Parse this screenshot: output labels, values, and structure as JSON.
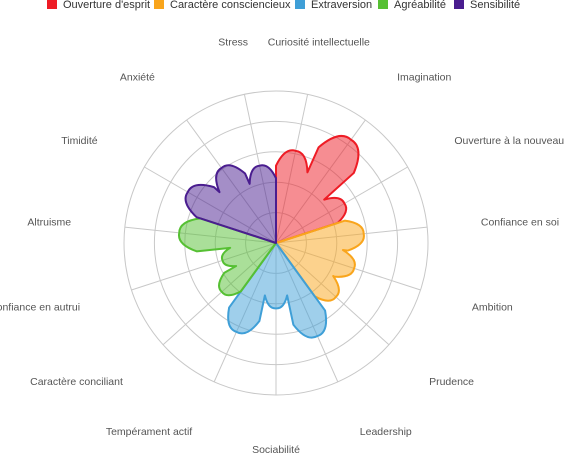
{
  "chart_data": {
    "type": "radar",
    "style": "polar-area",
    "title": "",
    "rmax": 100,
    "rings": 5,
    "grid": true,
    "legend_position": "top",
    "axes": [
      "Curiosité intellectuelle",
      "Imagination",
      "Ouverture à la nouveauté",
      "Confiance en soi",
      "Ambition",
      "Prudence",
      "Leadership",
      "Sociabilité",
      "Tempérament actif",
      "Caractère conciliant",
      "Confiance en autrui",
      "Altruisme",
      "Timidité",
      "Anxiété",
      "Stress"
    ],
    "series": [
      {
        "name": "Ouverture d'esprit",
        "color": "#ee1c25",
        "axes": [
          0,
          1,
          2
        ],
        "values": [
          62,
          84,
          52
        ]
      },
      {
        "name": "Caractère consciencieux",
        "color": "#f9a51c",
        "axes": [
          3,
          4,
          5
        ],
        "values": [
          58,
          54,
          53
        ]
      },
      {
        "name": "Extraversion",
        "color": "#3f9fd7",
        "axes": [
          6,
          7,
          8
        ],
        "values": [
          67,
          43,
          64
        ]
      },
      {
        "name": "Agréabilité",
        "color": "#56c033",
        "axes": [
          9,
          10,
          11
        ],
        "values": [
          48,
          37,
          64
        ]
      },
      {
        "name": "Sensibilité",
        "color": "#4a1d8f",
        "axes": [
          12,
          13,
          14
        ],
        "values": [
          67,
          61,
          52
        ]
      }
    ]
  }
}
